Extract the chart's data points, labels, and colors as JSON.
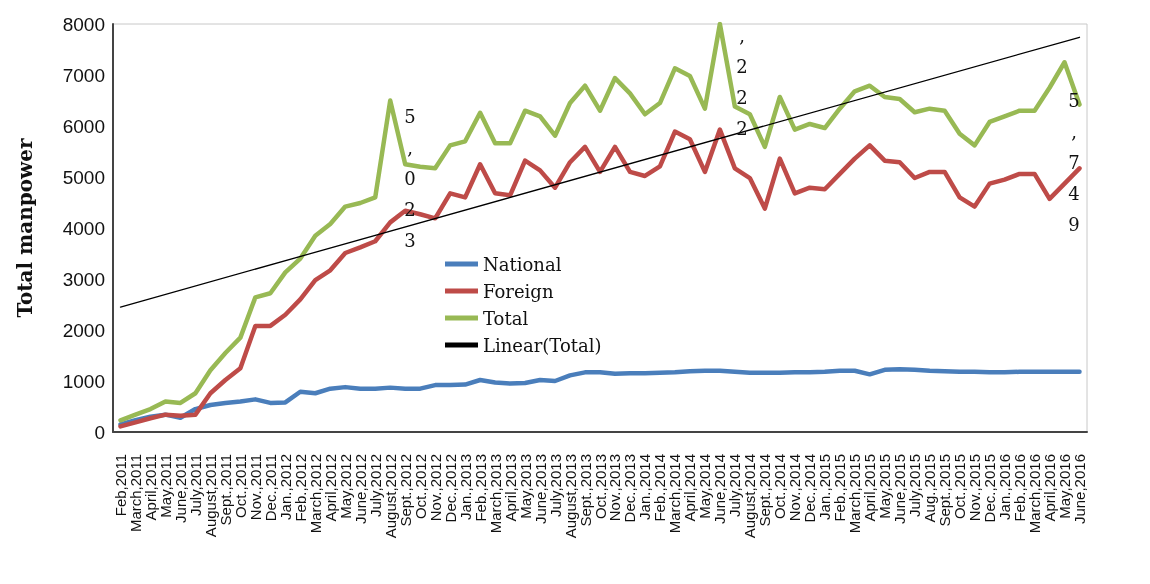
{
  "chart_data": {
    "type": "line",
    "ylabel": "Total manpower",
    "categories": [
      "Feb,2011",
      "March,2011",
      "April,2011",
      "May,2011",
      "June,2011",
      "July,2011",
      "August,2011",
      "Sept.,2011",
      "Oct.,2011",
      "Nov.,2011",
      "Dec.,2011",
      "Jan.,2012",
      "Feb.,2012",
      "March,2012",
      "April,2012",
      "May,2012",
      "June,2012",
      "July,2012",
      "August,2012",
      "Sept.,2012",
      "Oct.,2012",
      "Nov.,2012",
      "Dec.,2012",
      "Jan.,2013",
      "Feb.,2013",
      "March,2013",
      "April,2013",
      "May,2013",
      "June,2013",
      "July,2013",
      "August,2013",
      "Sept.,2013",
      "Oct.,2013",
      "Nov.,2013",
      "Dec.,2013",
      "Jan.,2014",
      "Feb.,2014",
      "March,2014",
      "April,2014",
      "May,2014",
      "June,2014",
      "July,2014",
      "August,2014",
      "Sept.,2014",
      "Oct.,2014",
      "Nov.,2014",
      "Dec.,2014",
      "Jan.,2015",
      "Feb.,2015",
      "March,2015",
      "April,2015",
      "May,2015",
      "June,2015",
      "July,2015",
      "Aug.,2015",
      "Sept.,2015",
      "Oct.,2015",
      "Nov.,2015",
      "Dec.,2015",
      "Jan.,2016",
      "Feb.,2016",
      "March,2016",
      "April,2016",
      "May,2016",
      "June,2016"
    ],
    "series": [
      {
        "name": "National",
        "color": "#4a7ebb",
        "values": [
          150,
          230,
          300,
          340,
          280,
          450,
          530,
          570,
          600,
          640,
          570,
          580,
          790,
          760,
          850,
          880,
          850,
          850,
          870,
          850,
          850,
          920,
          920,
          930,
          1020,
          970,
          950,
          960,
          1020,
          1000,
          1110,
          1170,
          1170,
          1140,
          1150,
          1150,
          1160,
          1170,
          1190,
          1200,
          1200,
          1180,
          1160,
          1160,
          1160,
          1170,
          1170,
          1180,
          1200,
          1200,
          1130,
          1220,
          1230,
          1220,
          1200,
          1190,
          1180,
          1180,
          1170,
          1170,
          1180,
          1180,
          1180,
          1180,
          1180
        ]
      },
      {
        "name": "Foreign",
        "color": "#be4b48",
        "values": [
          110,
          190,
          270,
          340,
          320,
          340,
          760,
          1020,
          1250,
          2080,
          2080,
          2300,
          2600,
          2980,
          3170,
          3510,
          3620,
          3740,
          4110,
          4340,
          4270,
          4190,
          4680,
          4600,
          5250,
          4680,
          4640,
          5320,
          5130,
          4790,
          5290,
          5590,
          5100,
          5590,
          5100,
          5020,
          5210,
          5890,
          5740,
          5100,
          5930,
          5170,
          4980,
          4380,
          5360,
          4680,
          4790,
          4760,
          5060,
          5360,
          5620,
          5320,
          5290,
          4980,
          5100,
          5100,
          4600,
          4420,
          4870,
          4950,
          5060,
          5060,
          4570,
          4870,
          5170
        ]
      },
      {
        "name": "Total",
        "color": "#98b954",
        "values": [
          230,
          340,
          450,
          600,
          570,
          760,
          1210,
          1550,
          1850,
          2640,
          2720,
          3130,
          3400,
          3850,
          4080,
          4420,
          4490,
          4600,
          6500,
          5250,
          5200,
          5170,
          5620,
          5700,
          6260,
          5660,
          5660,
          6300,
          6190,
          5810,
          6450,
          6790,
          6300,
          6940,
          6640,
          6230,
          6450,
          7130,
          6980,
          6340,
          8000,
          6380,
          6230,
          5590,
          6570,
          5930,
          6040,
          5960,
          6340,
          6680,
          6790,
          6570,
          6530,
          6270,
          6340,
          6300,
          5850,
          5620,
          6080,
          6190,
          6300,
          6300,
          6750,
          7250,
          6420
        ]
      },
      {
        "name": "Linear(Total)",
        "color": "#000000",
        "x": [
          "Feb,2011",
          "June,2016"
        ],
        "values": [
          2450,
          7740
        ]
      }
    ],
    "ylim": [
      0,
      8000
    ],
    "yticks": [
      0,
      1000,
      2000,
      3000,
      4000,
      5000,
      6000,
      7000,
      8000
    ],
    "annotations": [
      "5,023",
      ",222",
      "5,749"
    ],
    "legend": "center",
    "grid": false,
    "marker": "none",
    "line_style": "solid"
  }
}
